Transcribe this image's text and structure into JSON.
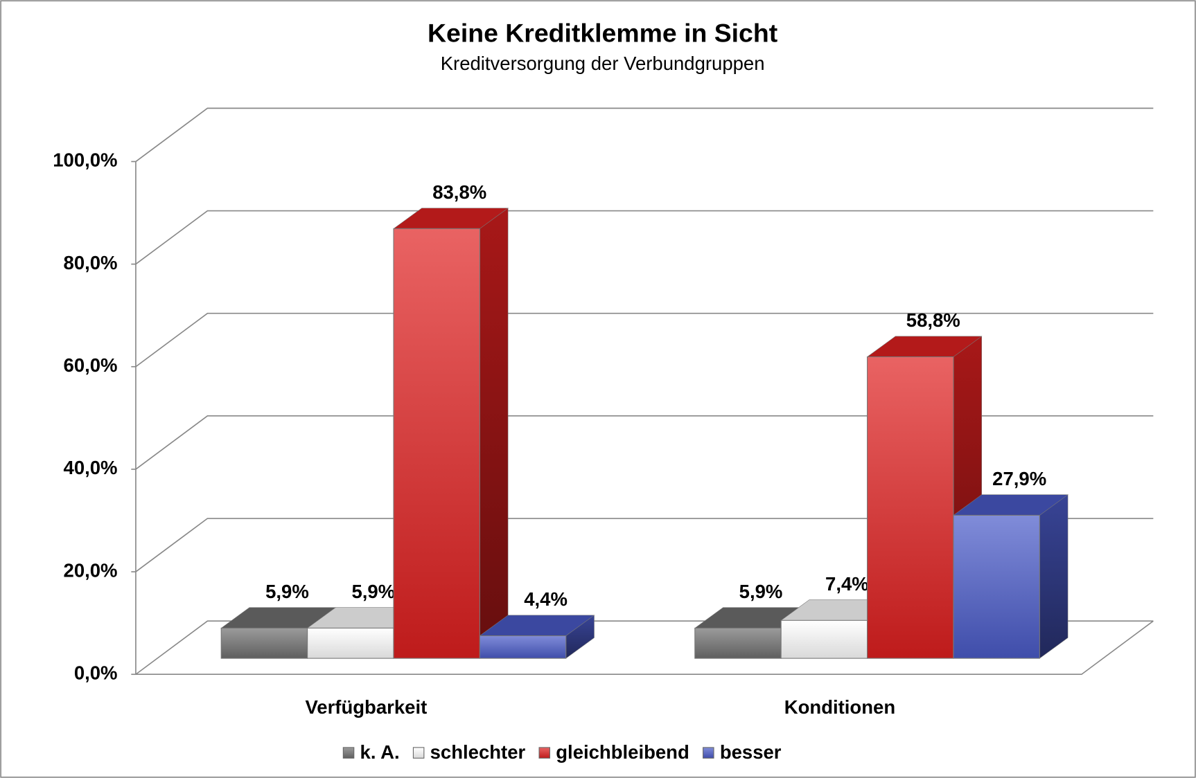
{
  "chart_data": {
    "type": "bar3d",
    "title": "Keine Kreditklemme in Sicht",
    "subtitle": "Kreditversorgung der Verbundgruppen",
    "categories": [
      "Verfügbarkeit",
      "Konditionen"
    ],
    "series": [
      {
        "name": "k. A.",
        "color": "#707070",
        "values": [
          5.9,
          5.9
        ],
        "value_labels": [
          "5,9%",
          "5,9%"
        ]
      },
      {
        "name": "schlechter",
        "color": "#ffffff",
        "values": [
          5.9,
          7.4
        ],
        "value_labels": [
          "5,9%",
          "7,4%"
        ]
      },
      {
        "name": "gleichbleibend",
        "color": "#e02020",
        "values": [
          83.8,
          58.8
        ],
        "value_labels": [
          "83,8%",
          "58,8%"
        ]
      },
      {
        "name": "besser",
        "color": "#4a5ac8",
        "values": [
          4.4,
          27.9
        ],
        "value_labels": [
          "4,4%",
          "27,9%"
        ]
      }
    ],
    "ylim": [
      0,
      100
    ],
    "yticks": [
      {
        "value": 0,
        "label": "0,0%"
      },
      {
        "value": 20,
        "label": "20,0%"
      },
      {
        "value": 40,
        "label": "40,0%"
      },
      {
        "value": 60,
        "label": "60,0%"
      },
      {
        "value": 80,
        "label": "80,0%"
      },
      {
        "value": 100,
        "label": "100,0%"
      }
    ],
    "grid": true,
    "legend": "bottom"
  }
}
